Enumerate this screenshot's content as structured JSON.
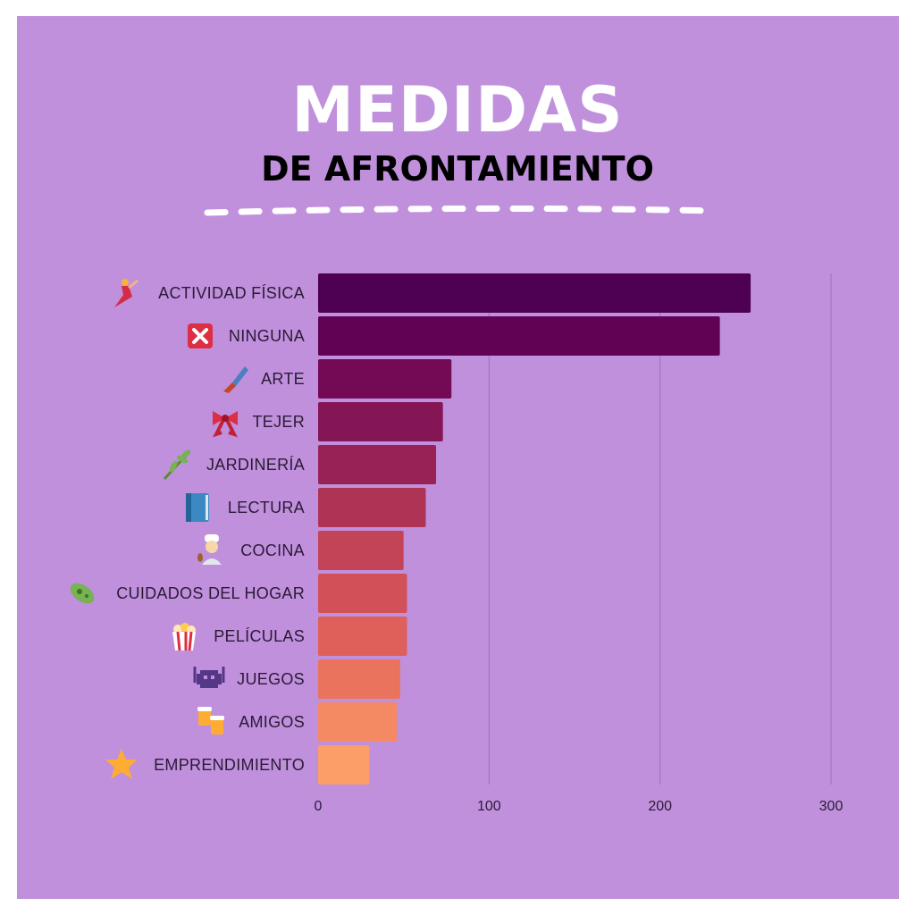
{
  "header": {
    "title": "MEDIDAS",
    "subtitle": "DE AFRONTAMIENTO"
  },
  "colors": {
    "background": "#c090dc",
    "bars": [
      "#4e0052",
      "#620255",
      "#740a56",
      "#851656",
      "#982256",
      "#ae3456",
      "#c34457",
      "#d25158",
      "#df605b",
      "#ea735d",
      "#f48a63",
      "#fc9e67"
    ]
  },
  "chart_data": {
    "type": "bar",
    "orientation": "horizontal",
    "categories": [
      {
        "label": "ACTIVIDAD FÍSICA",
        "icon": "dancer-icon"
      },
      {
        "label": "NINGUNA",
        "icon": "cross-mark-icon"
      },
      {
        "label": "ARTE",
        "icon": "paintbrush-icon"
      },
      {
        "label": "TEJER",
        "icon": "ribbon-icon"
      },
      {
        "label": "JARDINERÍA",
        "icon": "herb-icon"
      },
      {
        "label": "LECTURA",
        "icon": "book-icon"
      },
      {
        "label": "COCINA",
        "icon": "cook-icon"
      },
      {
        "label": "CUIDADOS DEL HOGAR",
        "icon": "microbe-icon"
      },
      {
        "label": "PELÍCULAS",
        "icon": "popcorn-icon"
      },
      {
        "label": "JUEGOS",
        "icon": "space-invader-icon"
      },
      {
        "label": "AMIGOS",
        "icon": "beer-mugs-icon"
      },
      {
        "label": "EMPRENDIMIENTO",
        "icon": "star-icon"
      }
    ],
    "values": [
      253,
      235,
      78,
      73,
      69,
      63,
      50,
      52,
      52,
      48,
      46,
      30
    ],
    "xlim": [
      0,
      300
    ],
    "xticks": [
      "0",
      "100",
      "200",
      "300"
    ],
    "grid": true
  }
}
